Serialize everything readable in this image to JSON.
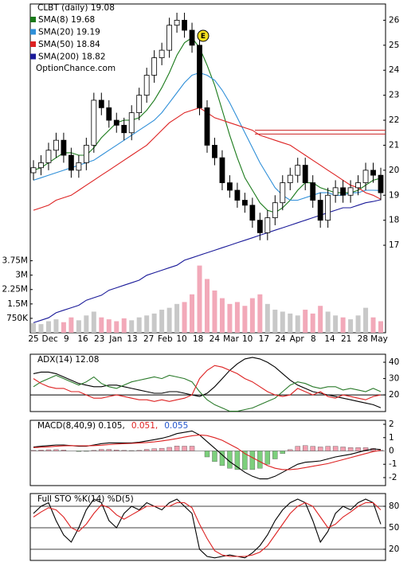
{
  "chart_data": [
    {
      "type": "candlestick",
      "title": "CLBT (daily) 19.08",
      "watermark": "OptionChance.com",
      "annotation": {
        "text": "E"
      },
      "x_labels": [
        "25",
        "Dec",
        "9",
        "16",
        "23",
        "Jan",
        "13",
        "27",
        "Feb",
        "10",
        "18",
        "24",
        "Mar",
        "10",
        "17",
        "24",
        "Apr",
        "8",
        "14",
        "21",
        "28",
        "May"
      ],
      "ylim": [
        13.5,
        26.65
      ],
      "yticks": [
        17,
        18,
        19,
        20,
        21,
        22,
        23,
        24,
        25,
        26
      ],
      "up_color": "#ffffff",
      "down_color": "#000000",
      "hlines": [
        21.6,
        21.45
      ],
      "hline_color": "#cc2222",
      "candles": {
        "open": [
          19.9,
          20.1,
          20.3,
          20.8,
          21.2,
          20.6,
          20.0,
          20.3,
          21.0,
          22.8,
          22.5,
          22.0,
          21.8,
          21.5,
          22.3,
          23.0,
          23.8,
          24.5,
          24.8,
          25.8,
          26.0,
          25.6,
          25.0,
          22.5,
          21.0,
          20.5,
          19.5,
          19.2,
          18.8,
          18.6,
          18.0,
          17.5,
          18.1,
          18.7,
          19.5,
          19.8,
          20.2,
          19.5,
          18.8,
          18.0,
          19.0,
          19.3,
          19.0,
          19.3,
          19.5,
          20.0,
          19.8
        ],
        "high": [
          20.4,
          20.6,
          21.1,
          21.5,
          21.5,
          20.9,
          20.6,
          21.3,
          23.1,
          23.1,
          22.8,
          22.3,
          22.1,
          22.6,
          23.3,
          24.1,
          24.8,
          25.1,
          26.1,
          26.3,
          26.3,
          25.9,
          25.3,
          22.8,
          21.3,
          20.8,
          19.8,
          19.5,
          19.1,
          18.9,
          18.3,
          18.4,
          19.0,
          19.8,
          20.1,
          20.5,
          20.5,
          19.8,
          19.1,
          19.3,
          19.6,
          19.6,
          19.6,
          19.8,
          20.3,
          20.3,
          20.1
        ],
        "low": [
          19.6,
          19.8,
          20.0,
          20.5,
          20.3,
          19.7,
          19.7,
          20.0,
          20.7,
          22.2,
          21.7,
          21.5,
          21.2,
          21.2,
          22.0,
          22.7,
          23.5,
          24.2,
          24.5,
          25.5,
          25.3,
          24.7,
          22.2,
          20.7,
          20.2,
          19.2,
          18.9,
          18.5,
          18.3,
          17.7,
          17.2,
          17.2,
          17.8,
          18.4,
          19.2,
          19.5,
          19.2,
          18.5,
          17.7,
          17.7,
          18.7,
          18.7,
          18.7,
          19.0,
          19.2,
          19.5,
          18.8
        ],
        "close": [
          20.1,
          20.3,
          20.8,
          21.2,
          20.6,
          20.0,
          20.3,
          21.0,
          22.8,
          22.5,
          22.0,
          21.8,
          21.5,
          22.3,
          23.0,
          23.8,
          24.5,
          24.8,
          25.8,
          26.0,
          25.6,
          25.0,
          22.5,
          21.0,
          20.5,
          19.5,
          19.2,
          18.8,
          18.6,
          18.0,
          17.5,
          18.1,
          18.7,
          19.5,
          19.8,
          20.2,
          19.5,
          18.8,
          18.0,
          19.0,
          19.3,
          19.0,
          19.3,
          19.5,
          20.0,
          19.8,
          19.1
        ]
      },
      "series": [
        {
          "name": "SMA(8) 19.68",
          "color": "#1a7a1a",
          "values": [
            20.0,
            20.1,
            20.3,
            20.5,
            20.7,
            20.7,
            20.6,
            20.6,
            20.9,
            21.3,
            21.6,
            21.9,
            22.0,
            22.0,
            22.1,
            22.4,
            22.8,
            23.3,
            23.9,
            24.6,
            25.1,
            25.3,
            24.9,
            24.2,
            23.4,
            22.4,
            21.4,
            20.5,
            19.7,
            19.2,
            18.7,
            18.4,
            18.3,
            18.5,
            18.8,
            19.2,
            19.5,
            19.5,
            19.3,
            19.2,
            19.1,
            19.1,
            19.1,
            19.2,
            19.4,
            19.6,
            19.68
          ]
        },
        {
          "name": "SMA(20) 19.19",
          "color": "#2f8fd8",
          "values": [
            19.6,
            19.7,
            19.8,
            19.9,
            20.0,
            20.1,
            20.2,
            20.3,
            20.4,
            20.6,
            20.8,
            21.0,
            21.2,
            21.4,
            21.6,
            21.8,
            22.0,
            22.3,
            22.7,
            23.1,
            23.5,
            23.8,
            23.9,
            23.8,
            23.6,
            23.2,
            22.7,
            22.1,
            21.5,
            20.9,
            20.3,
            19.8,
            19.3,
            19.0,
            18.8,
            18.8,
            18.9,
            19.0,
            19.1,
            19.1,
            19.0,
            19.0,
            19.1,
            19.1,
            19.2,
            19.2,
            19.19
          ]
        },
        {
          "name": "SMA(50) 18.84",
          "color": "#dd2222",
          "values": [
            18.4,
            18.5,
            18.6,
            18.8,
            18.9,
            19.0,
            19.2,
            19.4,
            19.6,
            19.8,
            20.0,
            20.2,
            20.4,
            20.6,
            20.8,
            21.0,
            21.3,
            21.6,
            21.9,
            22.1,
            22.3,
            22.4,
            22.5,
            22.3,
            22.1,
            22.0,
            21.9,
            21.8,
            21.7,
            21.6,
            21.4,
            21.3,
            21.2,
            21.1,
            21.0,
            20.8,
            20.6,
            20.4,
            20.2,
            20.0,
            19.8,
            19.6,
            19.4,
            19.3,
            19.1,
            19.0,
            18.84
          ]
        },
        {
          "name": "SMA(200) 18.82",
          "color": "#1a1a99",
          "values": [
            13.9,
            14.0,
            14.1,
            14.3,
            14.4,
            14.5,
            14.6,
            14.8,
            14.9,
            15.0,
            15.2,
            15.3,
            15.4,
            15.5,
            15.6,
            15.8,
            15.9,
            16.0,
            16.1,
            16.2,
            16.4,
            16.5,
            16.6,
            16.7,
            16.8,
            16.9,
            17.0,
            17.1,
            17.2,
            17.3,
            17.4,
            17.5,
            17.6,
            17.7,
            17.8,
            17.9,
            18.0,
            18.1,
            18.2,
            18.3,
            18.4,
            18.5,
            18.5,
            18.6,
            18.7,
            18.75,
            18.82
          ]
        }
      ],
      "volume": {
        "color": "#c8c8c8",
        "down_color": "#f2a9b9",
        "ylim": [
          0,
          17125000
        ],
        "yticks": [
          {
            "value": 3750000,
            "label": "3.75M"
          },
          {
            "value": 3000000,
            "label": "3M"
          },
          {
            "value": 2250000,
            "label": "2.25M"
          },
          {
            "value": 1500000,
            "label": "1.5M"
          },
          {
            "value": 750000,
            "label": "750K"
          }
        ],
        "values": [
          500000,
          450000,
          600000,
          700000,
          550000,
          800000,
          650000,
          900000,
          1100000,
          800000,
          700000,
          600000,
          750000,
          650000,
          800000,
          900000,
          1000000,
          1200000,
          1300000,
          1500000,
          1600000,
          2000000,
          3500000,
          2800000,
          2200000,
          1800000,
          1500000,
          1600000,
          1400000,
          1800000,
          2000000,
          1500000,
          1200000,
          1100000,
          1000000,
          900000,
          1200000,
          1000000,
          1400000,
          1100000,
          900000,
          800000,
          700000,
          900000,
          1300000,
          800000,
          600000
        ]
      }
    },
    {
      "type": "line",
      "title": "ADX(14) 12.08",
      "ylim": [
        9.8,
        44.9
      ],
      "yticks": [
        40,
        30,
        20
      ],
      "hlines": [
        20
      ],
      "hline_color": "#000000",
      "series": [
        {
          "color": "#000000",
          "values": [
            33,
            34,
            34,
            33,
            31,
            29,
            27,
            26,
            25,
            25,
            26,
            26,
            25,
            24,
            23,
            22,
            21,
            21,
            22,
            22,
            21,
            20,
            19,
            21,
            25,
            30,
            35,
            39,
            42,
            43,
            42,
            40,
            37,
            33,
            29,
            26,
            24,
            22,
            21,
            20,
            19,
            18,
            17,
            16,
            15,
            14,
            12.08
          ]
        },
        {
          "color": "#2a7a2a",
          "values": [
            25,
            28,
            30,
            32,
            30,
            28,
            26,
            28,
            31,
            27,
            25,
            24,
            26,
            28,
            29,
            30,
            31,
            30,
            32,
            31,
            30,
            28,
            22,
            17,
            14,
            12,
            10,
            10,
            11,
            12,
            14,
            16,
            18,
            22,
            26,
            28,
            27,
            25,
            24,
            25,
            25,
            23,
            24,
            23,
            22,
            24,
            22
          ]
        },
        {
          "color": "#dd2222",
          "values": [
            30,
            27,
            25,
            24,
            24,
            22,
            22,
            20,
            18,
            18,
            19,
            20,
            19,
            18,
            17,
            17,
            16,
            17,
            16,
            17,
            18,
            20,
            30,
            35,
            38,
            37,
            35,
            33,
            30,
            28,
            25,
            22,
            20,
            19,
            20,
            24,
            22,
            20,
            22,
            19,
            18,
            20,
            19,
            18,
            17,
            19,
            20
          ]
        }
      ]
    },
    {
      "type": "macd",
      "title": "MACD(8,40,9) 0.105,",
      "ylim": [
        -2.6,
        2.3
      ],
      "yticks": [
        2,
        1,
        0,
        -1,
        -2
      ],
      "hlines": [
        0
      ],
      "hline_color": "#999999",
      "series": [
        {
          "color": "#000000",
          "values": [
            0.3,
            0.35,
            0.4,
            0.45,
            0.45,
            0.4,
            0.35,
            0.35,
            0.45,
            0.55,
            0.6,
            0.6,
            0.6,
            0.6,
            0.65,
            0.75,
            0.85,
            0.95,
            1.1,
            1.3,
            1.4,
            1.5,
            1.2,
            0.7,
            0.2,
            -0.3,
            -0.8,
            -1.2,
            -1.6,
            -1.9,
            -2.1,
            -2.1,
            -1.9,
            -1.6,
            -1.3,
            -1.0,
            -0.85,
            -0.8,
            -0.75,
            -0.6,
            -0.45,
            -0.35,
            -0.25,
            -0.1,
            0.05,
            0.15,
            0.105
          ]
        },
        {
          "name": "0.051,",
          "color": "#dd2222",
          "values": [
            0.25,
            0.28,
            0.31,
            0.35,
            0.38,
            0.4,
            0.39,
            0.38,
            0.4,
            0.43,
            0.48,
            0.52,
            0.55,
            0.57,
            0.6,
            0.63,
            0.68,
            0.75,
            0.83,
            0.93,
            1.04,
            1.14,
            1.2,
            1.15,
            1.0,
            0.8,
            0.5,
            0.2,
            -0.2,
            -0.5,
            -0.8,
            -1.1,
            -1.3,
            -1.4,
            -1.4,
            -1.35,
            -1.25,
            -1.15,
            -1.05,
            -0.95,
            -0.8,
            -0.65,
            -0.5,
            -0.35,
            -0.2,
            -0.05,
            0.051
          ]
        }
      ],
      "histogram": {
        "name": "0.055",
        "color": "#2255cc",
        "up_color": "#f2a0b0",
        "down_color": "#7ccf7c",
        "values": [
          0.05,
          0.07,
          0.09,
          0.1,
          0.07,
          0,
          -0.04,
          -0.03,
          0.05,
          0.12,
          0.12,
          0.08,
          0.05,
          0.03,
          0.05,
          0.12,
          0.17,
          0.2,
          0.27,
          0.37,
          0.36,
          0.36,
          0,
          -0.45,
          -0.8,
          -1.1,
          -1.3,
          -1.4,
          -1.4,
          -1.4,
          -1.3,
          -1.0,
          -0.6,
          -0.2,
          0.1,
          0.35,
          0.4,
          0.35,
          0.3,
          0.35,
          0.35,
          0.3,
          0.25,
          0.25,
          0.25,
          0.2,
          0.055
        ]
      }
    },
    {
      "type": "line",
      "title": "Full STO %K(14) %D(5)",
      "ylim": [
        4.4,
        97.8
      ],
      "yticks": [
        80,
        50,
        20
      ],
      "grid": true,
      "series": [
        {
          "color": "#000000",
          "values": [
            70,
            80,
            85,
            60,
            40,
            30,
            50,
            75,
            90,
            85,
            60,
            50,
            70,
            80,
            75,
            85,
            80,
            75,
            85,
            90,
            80,
            70,
            20,
            10,
            8,
            10,
            12,
            10,
            8,
            15,
            25,
            40,
            60,
            75,
            85,
            90,
            85,
            60,
            30,
            45,
            70,
            80,
            75,
            85,
            90,
            85,
            55
          ]
        },
        {
          "color": "#dd2222",
          "values": [
            65,
            72,
            78,
            75,
            65,
            50,
            45,
            55,
            70,
            82,
            78,
            68,
            62,
            68,
            74,
            80,
            80,
            80,
            80,
            85,
            85,
            78,
            55,
            35,
            18,
            12,
            10,
            10,
            10,
            12,
            16,
            25,
            40,
            55,
            70,
            80,
            85,
            80,
            65,
            50,
            55,
            65,
            72,
            80,
            85,
            85,
            75
          ]
        }
      ]
    }
  ]
}
